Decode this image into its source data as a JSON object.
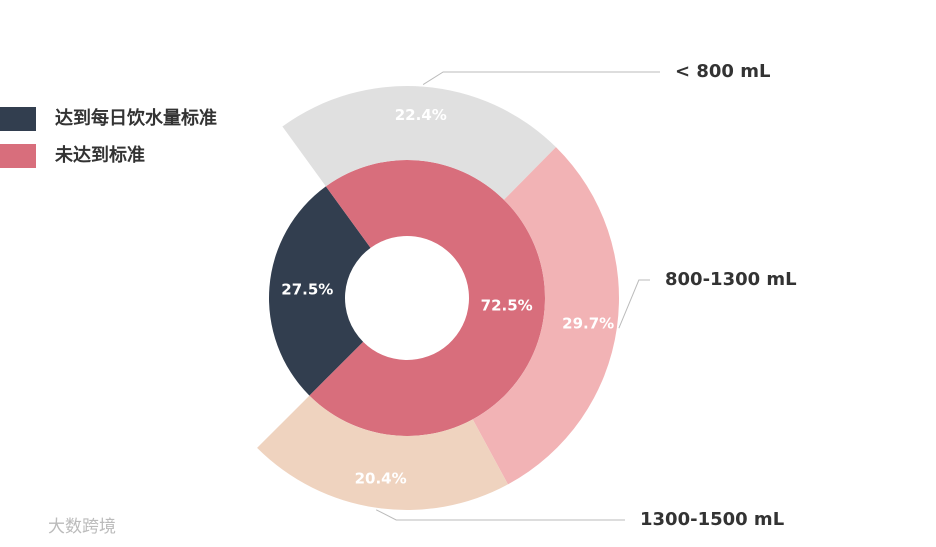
{
  "chart_data": {
    "type": "nested-donut",
    "legend": "upper left",
    "rings": [
      {
        "categories": [
          "达到每日饮水量标准",
          "未达到标准"
        ],
        "values": [
          27.5,
          72.5
        ],
        "value_labels": [
          "27.5%",
          "72.5%"
        ],
        "colors": [
          "#323e4f",
          "#d86e7c"
        ]
      },
      {
        "categories": [
          "< 800 mL",
          "800-1300 mL",
          "1300-1500 mL"
        ],
        "values": [
          22.4,
          29.7,
          20.4
        ],
        "value_labels": [
          "22.4%",
          "29.7%",
          "20.4%"
        ],
        "colors": [
          "#e0e0e0",
          "#f2b3b5",
          "#efd3bf"
        ]
      }
    ],
    "watermark": "大数跨境"
  }
}
